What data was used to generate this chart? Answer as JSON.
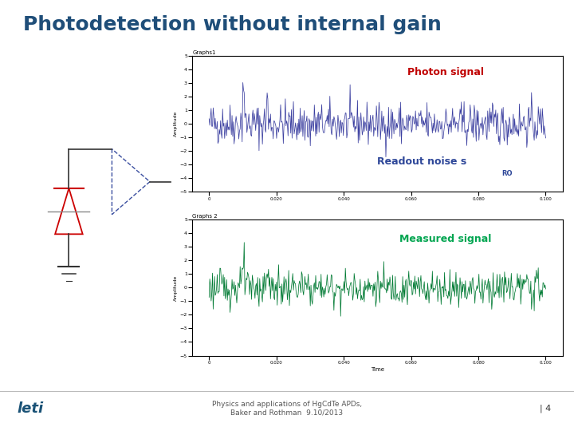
{
  "title": "Photodetection without internal gain",
  "title_color": "#1F4E79",
  "title_fontsize": 18,
  "graph1_title": "Graphs1",
  "graph2_title": "Graphs 2",
  "photon_label": "Photon signal",
  "photon_label_color": "#C00000",
  "readout_label": "Readout noise s",
  "readout_sub": "RO",
  "readout_label_color": "#2E4799",
  "measured_label": "Measured signal",
  "measured_label_color": "#00A550",
  "xlabel": "Time",
  "ylabel": "Amplitude",
  "ylim": [
    -5,
    5
  ],
  "yticks": [
    -5,
    -4,
    -3,
    -2,
    -1,
    0,
    1,
    2,
    3,
    4,
    5
  ],
  "signal_color": "#3B3FA0",
  "measured_color": "#007A33",
  "footer_text": "Physics and applications of HgCdTe APDs,\nBaker and Rothman  9.10/2013",
  "footer_right": "| 4",
  "leti_text": "leti",
  "background_color": "#FFFFFF",
  "plot_bg": "#FFFFFF",
  "seed1": 42,
  "seed2": 123,
  "n_points": 500,
  "noise_std": 0.75,
  "noise_std2": 0.65
}
